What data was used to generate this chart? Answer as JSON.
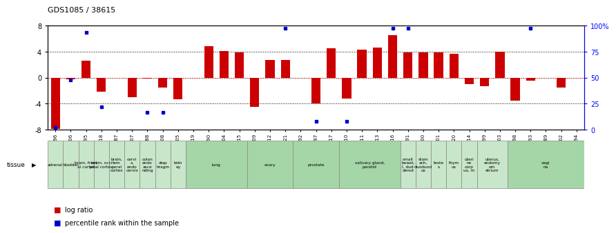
{
  "title": "GDS1085 / 38615",
  "gsm_labels": [
    "GSM39896",
    "GSM39906",
    "GSM39895",
    "GSM39918",
    "GSM39887",
    "GSM39907",
    "GSM39888",
    "GSM39908",
    "GSM39905",
    "GSM39919",
    "GSM39890",
    "GSM39904",
    "GSM39915",
    "GSM39909",
    "GSM39912",
    "GSM39921",
    "GSM39892",
    "GSM39897",
    "GSM39917",
    "GSM39910",
    "GSM39911",
    "GSM39913",
    "GSM39916",
    "GSM39891",
    "GSM39900",
    "GSM39901",
    "GSM39920",
    "GSM39914",
    "GSM39899",
    "GSM39903",
    "GSM39898",
    "GSM39893",
    "GSM39889",
    "GSM39902",
    "GSM39894"
  ],
  "log_ratio": [
    -7.8,
    -0.3,
    2.6,
    -2.2,
    -0.1,
    -3.0,
    -0.2,
    -1.5,
    -3.3,
    -0.1,
    4.8,
    4.1,
    3.8,
    -4.5,
    2.7,
    2.7,
    -0.1,
    -4.0,
    4.5,
    -3.2,
    4.3,
    4.6,
    6.5,
    3.8,
    3.8,
    3.8,
    3.6,
    -1.0,
    -1.3,
    4.0,
    -3.5,
    -0.5,
    0.0,
    -1.5,
    0.0
  ],
  "percentile": [
    2,
    48,
    93,
    22,
    null,
    null,
    17,
    17,
    null,
    null,
    null,
    null,
    null,
    null,
    null,
    97,
    null,
    8,
    null,
    8,
    null,
    null,
    97,
    97,
    null,
    null,
    null,
    null,
    null,
    null,
    null,
    97,
    null,
    null,
    null
  ],
  "tissue_groups": [
    {
      "label": "adrenal",
      "start": 0,
      "end": 1,
      "color": "#c8e6c9"
    },
    {
      "label": "bladder",
      "start": 1,
      "end": 2,
      "color": "#c8e6c9"
    },
    {
      "label": "brain, front\nal cortex",
      "start": 2,
      "end": 3,
      "color": "#c8e6c9"
    },
    {
      "label": "brain, occi\npital cortex",
      "start": 3,
      "end": 4,
      "color": "#c8e6c9"
    },
    {
      "label": "brain,\ntem\nporal\ncortex",
      "start": 4,
      "end": 5,
      "color": "#c8e6c9"
    },
    {
      "label": "cervi\nx,\nendo\ncervix",
      "start": 5,
      "end": 6,
      "color": "#c8e6c9"
    },
    {
      "label": "colon\nendo\nasce\nnding",
      "start": 6,
      "end": 7,
      "color": "#c8e6c9"
    },
    {
      "label": "diap\nhragm",
      "start": 7,
      "end": 8,
      "color": "#c8e6c9"
    },
    {
      "label": "kidn\ney",
      "start": 8,
      "end": 9,
      "color": "#c8e6c9"
    },
    {
      "label": "lung",
      "start": 9,
      "end": 13,
      "color": "#a5d6a7"
    },
    {
      "label": "ovary",
      "start": 13,
      "end": 16,
      "color": "#a5d6a7"
    },
    {
      "label": "prostate",
      "start": 16,
      "end": 19,
      "color": "#a5d6a7"
    },
    {
      "label": "salivary gland,\nparotid",
      "start": 19,
      "end": 23,
      "color": "#a5d6a7"
    },
    {
      "label": "small\nbowel,\nl, dud\ndenut",
      "start": 23,
      "end": 24,
      "color": "#c8e6c9"
    },
    {
      "label": "stom\nach,\nduodund\nus",
      "start": 24,
      "end": 25,
      "color": "#c8e6c9"
    },
    {
      "label": "teste\ns",
      "start": 25,
      "end": 26,
      "color": "#c8e6c9"
    },
    {
      "label": "thym\nus",
      "start": 26,
      "end": 27,
      "color": "#c8e6c9"
    },
    {
      "label": "uteri\nne\ncorp\nus, m",
      "start": 27,
      "end": 28,
      "color": "#c8e6c9"
    },
    {
      "label": "uterus,\nendomy\nom\netrium",
      "start": 28,
      "end": 30,
      "color": "#c8e6c9"
    },
    {
      "label": "vagi\nna",
      "start": 30,
      "end": 35,
      "color": "#a5d6a7"
    }
  ],
  "ylim_left": [
    -8,
    8
  ],
  "ylim_right": [
    0,
    100
  ],
  "yticks_left": [
    -8,
    -4,
    0,
    4,
    8
  ],
  "yticks_right": [
    0,
    25,
    50,
    75,
    100
  ],
  "yticklabels_right": [
    "0",
    "25",
    "50",
    "75",
    "100%"
  ],
  "bar_color": "#cc0000",
  "dot_color": "#0000cc",
  "bg_color": "#ffffff"
}
